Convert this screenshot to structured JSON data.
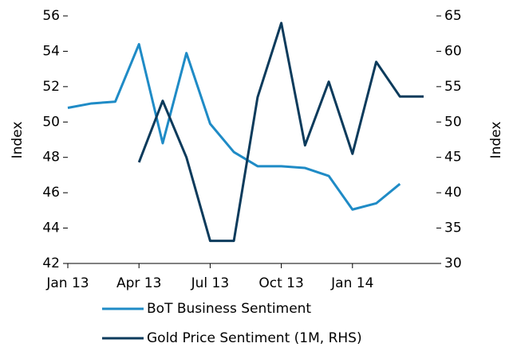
{
  "chart_data": {
    "type": "line",
    "categories": [
      "Jan 13",
      null,
      null,
      "Apr 13",
      null,
      null,
      "Jul 13",
      null,
      null,
      "Oct 13",
      null,
      null,
      "Jan 14",
      null,
      null,
      null
    ],
    "series": [
      {
        "name": "BoT Business Sentiment",
        "color": "#1f8bc6",
        "axis": "y",
        "values": [
          50.8,
          51.05,
          51.15,
          54.4,
          48.8,
          53.9,
          49.9,
          48.3,
          47.5,
          47.5,
          47.4,
          46.95,
          45.05,
          45.4,
          46.5,
          null
        ]
      },
      {
        "name": "Gold Price Sentiment (1M, RHS)",
        "color": "#0c3b5c",
        "axis": "y2",
        "values": [
          null,
          null,
          null,
          44.3,
          53,
          45,
          33.2,
          33.2,
          53.5,
          64,
          46.7,
          55.7,
          45.5,
          58.5,
          53.6,
          53.6
        ]
      }
    ],
    "ylabel": "Index",
    "y2label": "Index",
    "ylim": [
      42,
      56
    ],
    "yticks": [
      42,
      44,
      46,
      48,
      50,
      52,
      54,
      56
    ],
    "y2lim": [
      30,
      65
    ],
    "y2ticks": [
      30,
      35,
      40,
      45,
      50,
      55,
      60,
      65
    ],
    "grid": false
  }
}
